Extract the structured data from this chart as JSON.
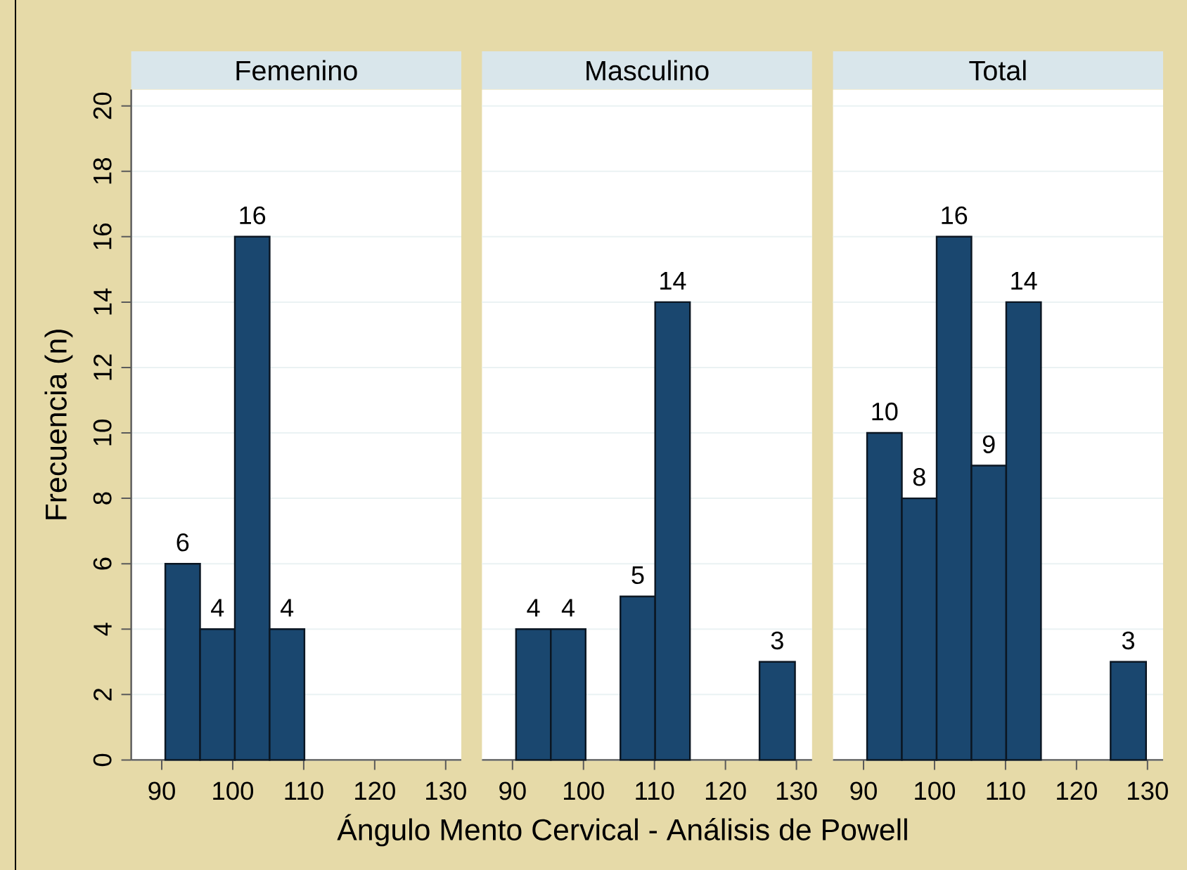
{
  "chart_data": [
    {
      "type": "histogram",
      "title": "Femenino",
      "ylabel": "Frecuencia (n)",
      "bins": [
        90.5,
        95.4,
        100.3,
        105.2,
        110.1
      ],
      "values": [
        6,
        4,
        16,
        4
      ],
      "value_labels": [
        "6",
        "4",
        "16",
        "4"
      ],
      "color": "#1a476f",
      "xlim": [
        85.7,
        132.2
      ],
      "ylim": [
        0,
        20.5
      ],
      "xticks": [
        90,
        100,
        110,
        120,
        130
      ],
      "yticks": [
        0,
        2,
        4,
        6,
        8,
        10,
        12,
        14,
        16,
        18,
        20
      ],
      "grid": "y"
    },
    {
      "type": "histogram",
      "title": "Masculino",
      "xlabel": "Ángulo Mento Cervical - Análisis de Powell",
      "bins": [
        90.5,
        95.4,
        100.3,
        105.2,
        110.1,
        115.0,
        124.8,
        129.8
      ],
      "values": [
        4,
        4,
        0,
        5,
        14,
        0,
        3
      ],
      "value_labels": [
        "4",
        "4",
        null,
        "5",
        "14",
        null,
        "3"
      ],
      "color": "#1a476f",
      "xlim": [
        85.7,
        132.2
      ],
      "ylim": [
        0,
        20.5
      ],
      "xticks": [
        90,
        100,
        110,
        120,
        130
      ],
      "yticks": [
        0,
        2,
        4,
        6,
        8,
        10,
        12,
        14,
        16,
        18,
        20
      ],
      "grid": "y",
      "tick_labels": "x"
    },
    {
      "type": "histogram",
      "title": "Total",
      "bins": [
        90.5,
        95.4,
        100.3,
        105.2,
        110.1,
        115.0,
        124.8,
        129.8
      ],
      "values": [
        10,
        8,
        16,
        9,
        14,
        0,
        3
      ],
      "value_labels": [
        "10",
        "8",
        "16",
        "9",
        "14",
        null,
        "3"
      ],
      "color": "#1a476f",
      "xlim": [
        85.7,
        132.2
      ],
      "ylim": [
        0,
        20.5
      ],
      "xticks": [
        90,
        100,
        110,
        120,
        130
      ],
      "yticks": [
        0,
        2,
        4,
        6,
        8,
        10,
        12,
        14,
        16,
        18,
        20
      ],
      "grid": "y",
      "tick_labels": "x"
    }
  ]
}
